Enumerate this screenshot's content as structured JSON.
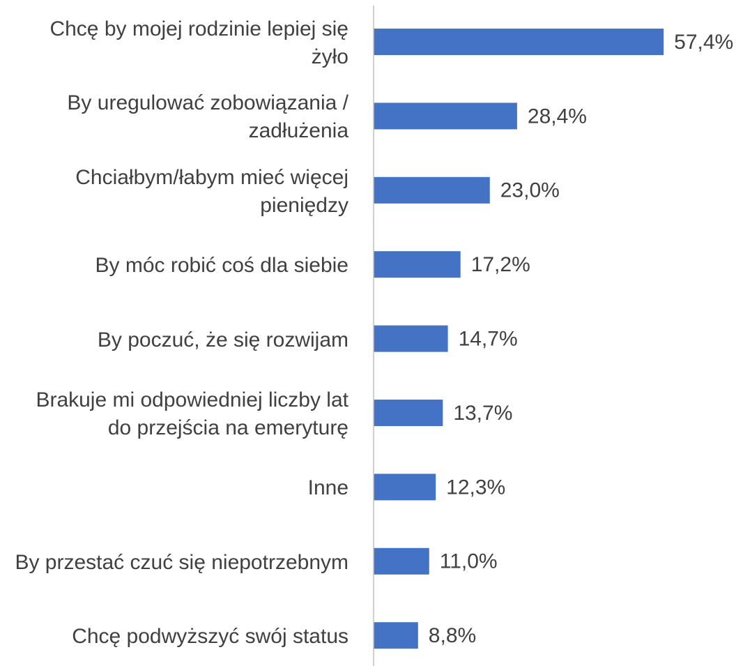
{
  "chart_data": {
    "type": "bar",
    "orientation": "horizontal",
    "categories": [
      "Chcę by mojej rodzinie lepiej się żyło",
      "By uregulować zobowiązania / zadłużenia",
      "Chciałbym/łabym mieć więcej pieniędzy",
      "By móc robić coś dla siebie",
      "By poczuć, że się rozwijam",
      "Brakuje mi odpowiedniej liczby lat do przejścia na emeryturę",
      "Inne",
      "By przestać czuć się niepotrzebnym",
      "Chcę podwyższyć swój status"
    ],
    "values": [
      57.4,
      28.4,
      23.0,
      17.2,
      14.7,
      13.7,
      12.3,
      11.0,
      8.8
    ],
    "value_labels": [
      "57,4%",
      "28,4%",
      "23,0%",
      "17,2%",
      "14,7%",
      "13,7%",
      "12,3%",
      "11,0%",
      "8,8%"
    ],
    "color": "#4472c4",
    "xlim": [
      0,
      60
    ]
  }
}
